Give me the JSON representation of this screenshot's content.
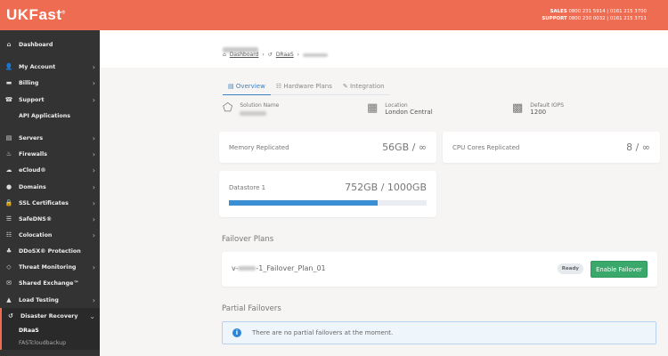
{
  "header": {
    "logo": "UKFast",
    "sales_label": "SALES",
    "sales_numbers": "0800 231 5914 | 0161 215 3700",
    "support_label": "SUPPORT",
    "support_numbers": "0800 230 0032 | 0161 215 3711"
  },
  "sidebar": {
    "items": [
      {
        "label": "Dashboard",
        "icon": "⌂",
        "chevron": false
      },
      {
        "label": "My Account",
        "icon": "👤",
        "chevron": true
      },
      {
        "label": "Billing",
        "icon": "▬",
        "chevron": true
      },
      {
        "label": "Support",
        "icon": "☎",
        "chevron": true
      },
      {
        "label": "API Applications",
        "icon": "</>",
        "chevron": false
      },
      {
        "label": "Servers",
        "icon": "▤",
        "chevron": true
      },
      {
        "label": "Firewalls",
        "icon": "♨",
        "chevron": true
      },
      {
        "label": "eCloud®",
        "icon": "☁",
        "chevron": true
      },
      {
        "label": "Domains",
        "icon": "●",
        "chevron": true
      },
      {
        "label": "SSL Certificates",
        "icon": "🔒",
        "chevron": true
      },
      {
        "label": "SafeDNS®",
        "icon": "☰",
        "chevron": true
      },
      {
        "label": "Colocation",
        "icon": "☷",
        "chevron": true
      },
      {
        "label": "DDoSX® Protection",
        "icon": "♣",
        "chevron": false
      },
      {
        "label": "Threat Monitoring",
        "icon": "◇",
        "chevron": true
      },
      {
        "label": "Shared Exchange™",
        "icon": "✉",
        "chevron": false
      },
      {
        "label": "Load Testing",
        "icon": "▲",
        "chevron": true
      },
      {
        "label": "Disaster Recovery",
        "icon": "↺",
        "chevron": true
      }
    ],
    "subitems": [
      "DRaaS",
      "FASTcloudbackup"
    ]
  },
  "breadcrumb": {
    "home": "Dashboard",
    "section": "DRaaS"
  },
  "tabs": [
    "Overview",
    "Hardware Plans",
    "Integration"
  ],
  "info": {
    "solution_label": "Solution Name",
    "location_label": "Location",
    "location_value": "London Central",
    "iops_label": "Default IOPS",
    "iops_value": "1200"
  },
  "cards": {
    "memory_label": "Memory Replicated",
    "memory_value": "56GB / ∞",
    "cpu_label": "CPU Cores Replicated",
    "cpu_value": "8 / ∞",
    "datastore_label": "Datastore 1",
    "datastore_value": "752GB / 1000GB",
    "datastore_used_fraction": 0.752
  },
  "failover": {
    "heading": "Failover Plans",
    "plan_prefix": "v-",
    "plan_suffix": "-1_Failover_Plan_01",
    "status": "Ready",
    "button": "Enable Failover"
  },
  "partial": {
    "heading": "Partial Failovers",
    "message": "There are no partial failovers at the moment."
  },
  "colors": {
    "brand": "#ee6c51",
    "sidebar": "#333333",
    "success": "#3aa86b",
    "progress": "#3a8fd4"
  }
}
